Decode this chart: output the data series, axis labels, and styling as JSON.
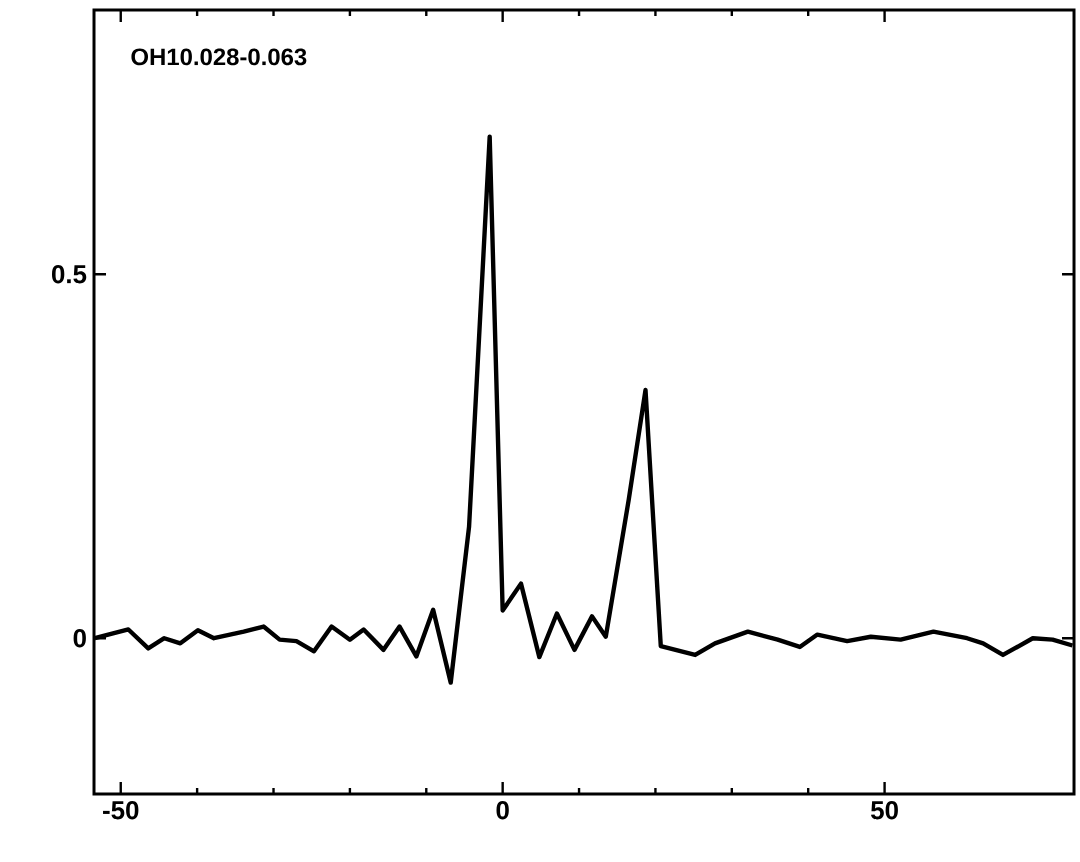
{
  "chart_data": {
    "type": "line",
    "color": "#000000",
    "marker": "none",
    "line_style": "solid",
    "grid": false,
    "xlim": [
      -53.5,
      74.8
    ],
    "ylim": [
      -0.214,
      0.863
    ],
    "xticks": [
      -50,
      0,
      50
    ],
    "yticks": [
      0,
      0.5
    ],
    "annotations": [
      "OH10.028-0.063"
    ],
    "x": [
      -53.4,
      -49,
      -46.4,
      -44.3,
      -42.2,
      -39.9,
      -37.8,
      -33.9,
      -31.3,
      -29.2,
      -27,
      -24.7,
      -22.4,
      -20,
      -18.2,
      -15.6,
      -13.5,
      -11.3,
      -9.1,
      -6.8,
      -4.4,
      -1.7,
      0,
      2.4,
      4.8,
      7.1,
      9.4,
      11.7,
      13.5,
      16.5,
      18.7,
      20.7,
      25.2,
      27.8,
      32.1,
      36,
      38.9,
      41.2,
      45.1,
      48.2,
      52.1,
      56.4,
      60.8,
      62.9,
      65.5,
      69.4,
      72,
      74.6
    ],
    "values": [
      0,
      0.012,
      -0.014,
      0,
      -0.007,
      0.011,
      0,
      0.009,
      0.016,
      -0.002,
      -0.004,
      -0.018,
      0.016,
      -0.002,
      0.012,
      -0.016,
      0.016,
      -0.025,
      0.039,
      -0.061,
      0.153,
      0.689,
      0.038,
      0.075,
      -0.026,
      0.034,
      -0.016,
      0.03,
      0.002,
      0.19,
      0.341,
      -0.011,
      -0.023,
      -0.007,
      0.009,
      -0.002,
      -0.012,
      0.005,
      -0.004,
      0.002,
      -0.002,
      0.009,
      0,
      -0.007,
      -0.023,
      0,
      -0.002,
      -0.01
    ]
  }
}
